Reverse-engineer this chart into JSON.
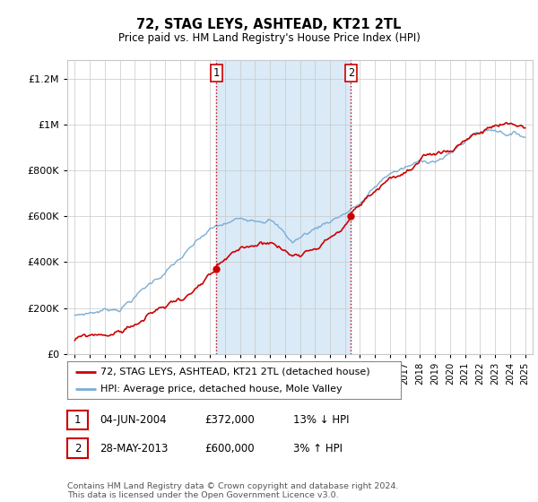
{
  "title": "72, STAG LEYS, ASHTEAD, KT21 2TL",
  "subtitle": "Price paid vs. HM Land Registry's House Price Index (HPI)",
  "yticks": [
    0,
    200000,
    400000,
    600000,
    800000,
    1000000,
    1200000
  ],
  "ylim": [
    0,
    1280000
  ],
  "xlim": [
    1994.5,
    2025.5
  ],
  "sale1_x": 2004.42,
  "sale1_y": 372000,
  "sale1_label": "1",
  "sale2_x": 2013.4,
  "sale2_y": 600000,
  "sale2_label": "2",
  "legend_line1": "72, STAG LEYS, ASHTEAD, KT21 2TL (detached house)",
  "legend_line2": "HPI: Average price, detached house, Mole Valley",
  "note1_num": "1",
  "note1_date": "04-JUN-2004",
  "note1_price": "£372,000",
  "note1_hpi": "13% ↓ HPI",
  "note2_num": "2",
  "note2_date": "28-MAY-2013",
  "note2_price": "£600,000",
  "note2_hpi": "3% ↑ HPI",
  "footer": "Contains HM Land Registry data © Crown copyright and database right 2024.\nThis data is licensed under the Open Government Licence v3.0.",
  "sale_color": "#cc0000",
  "hpi_color": "#7aadd4",
  "shade_color": "#daeaf7",
  "vline_color": "#cc0000",
  "bg_color": "#ffffff",
  "grid_color": "#c8c8c8"
}
